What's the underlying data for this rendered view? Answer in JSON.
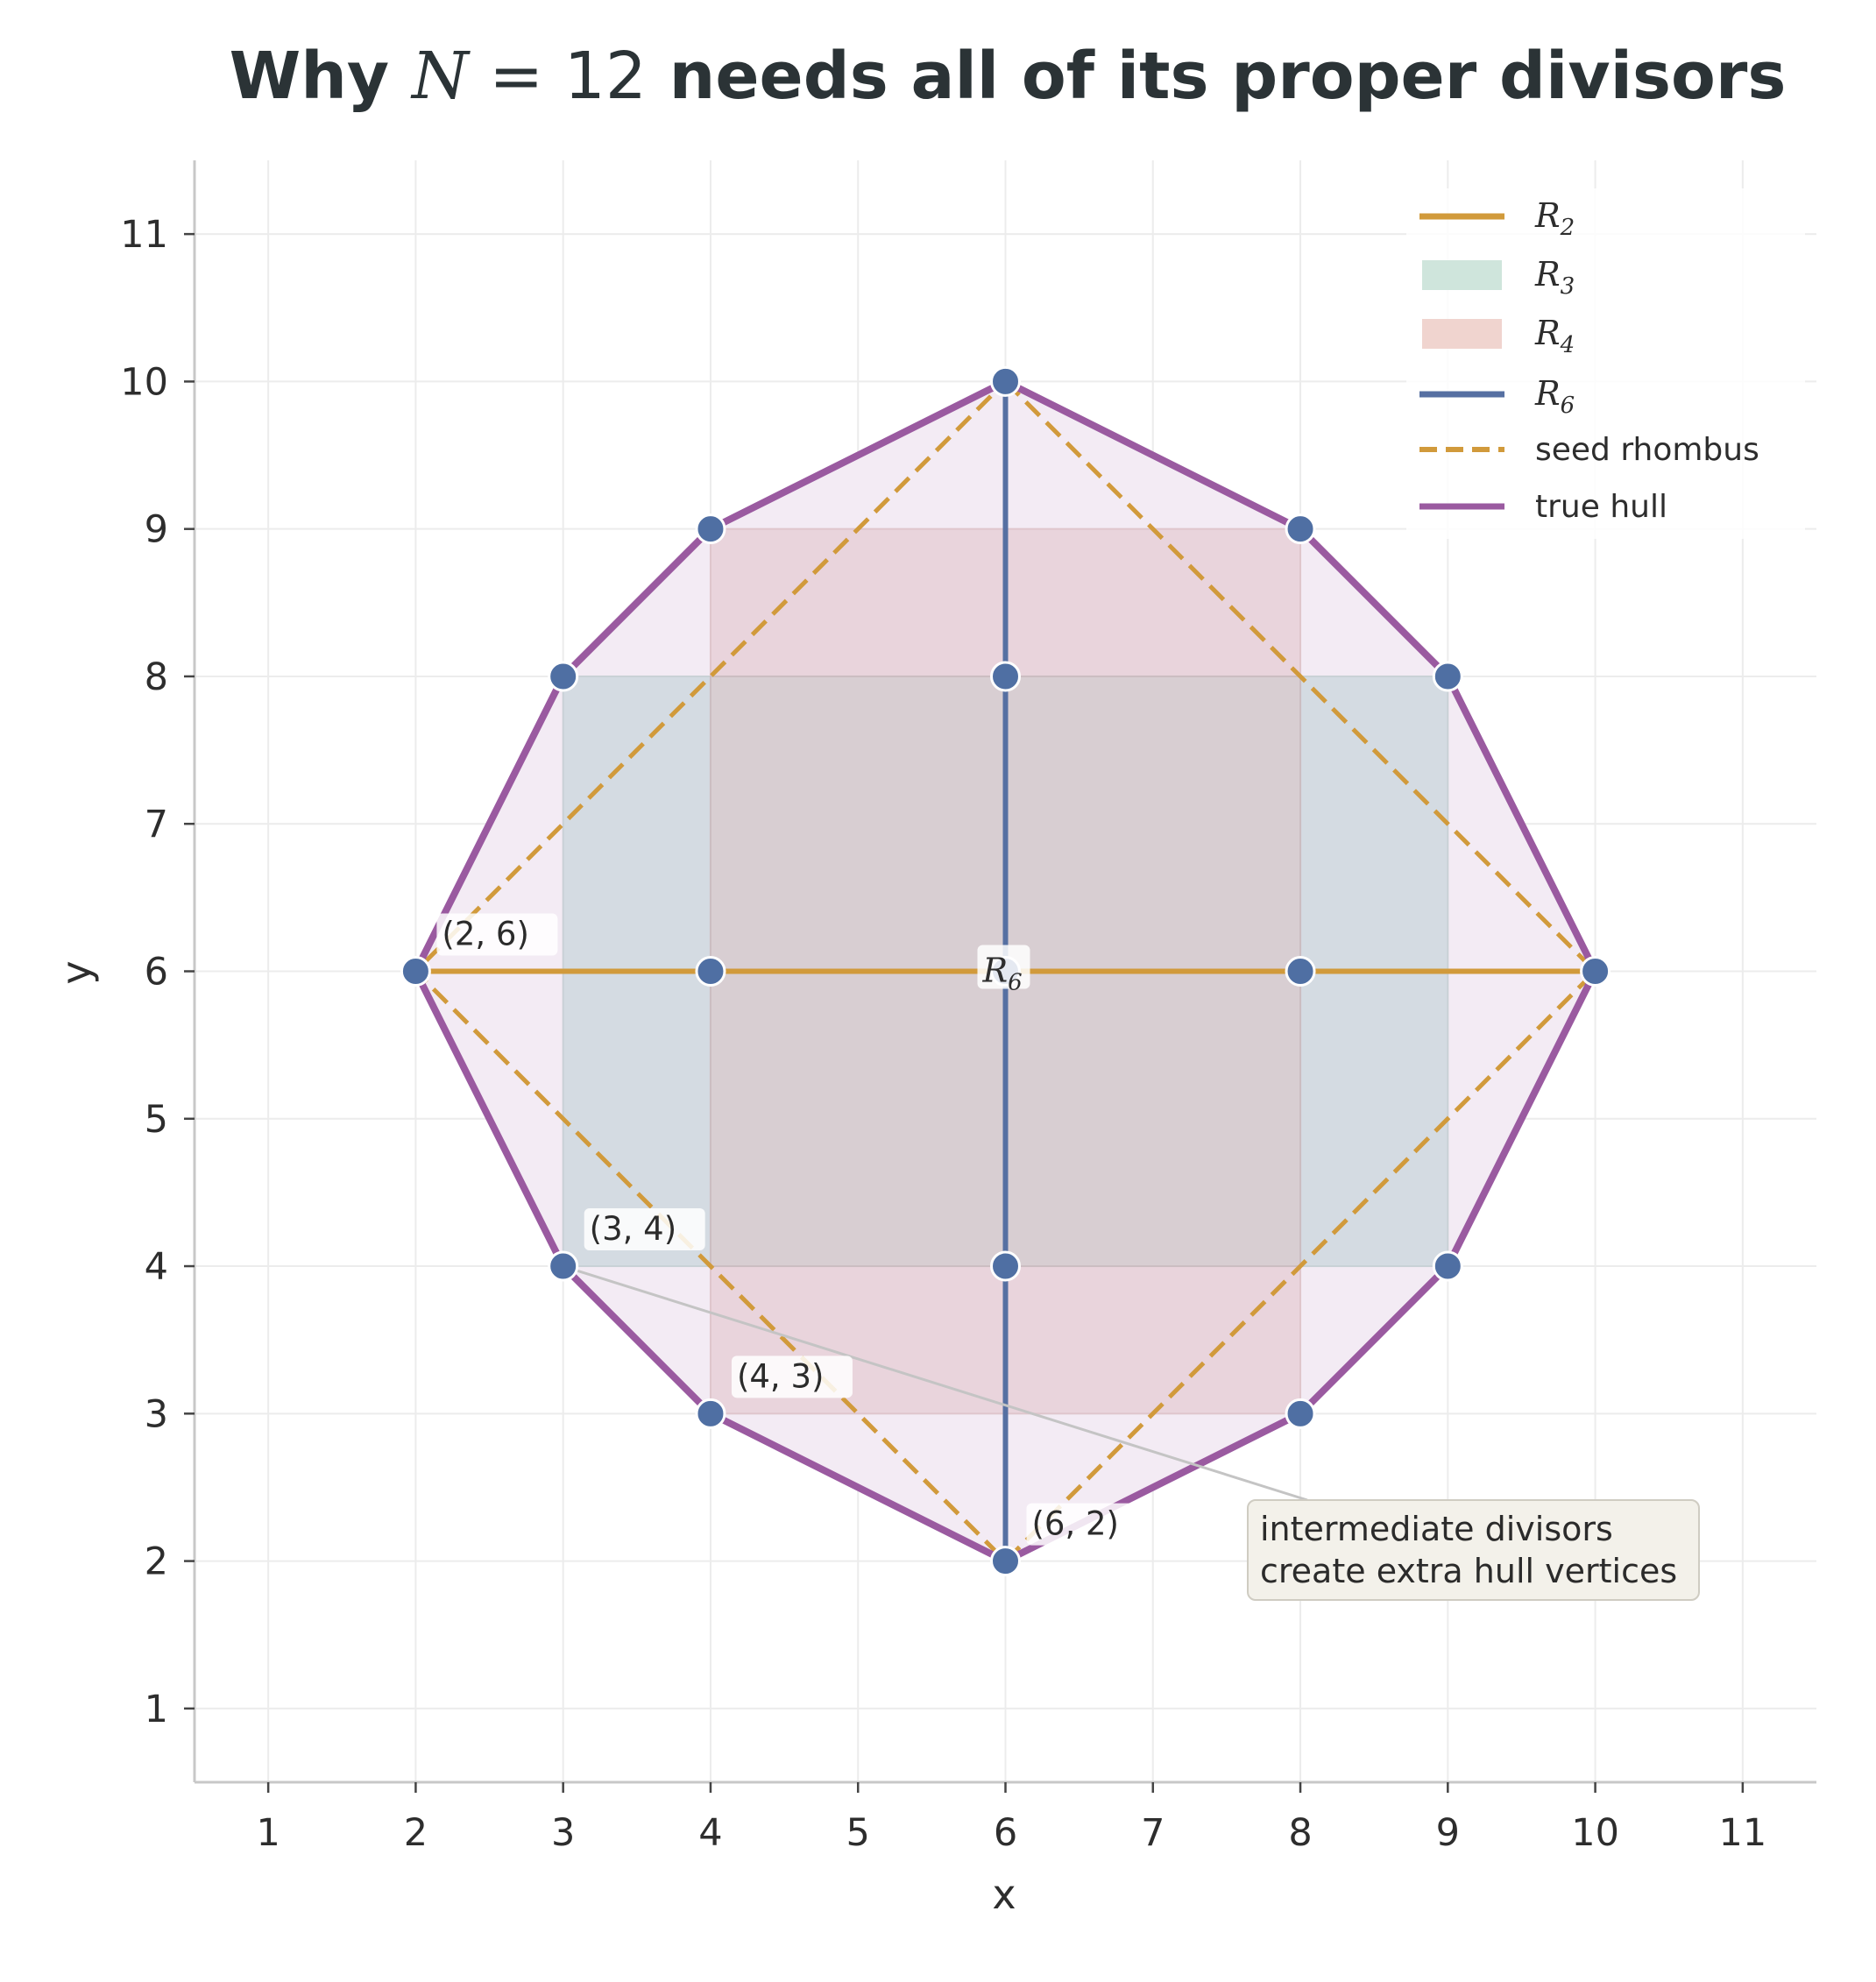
{
  "chart_data": {
    "type": "scatter",
    "title": {
      "prefix": "Why ",
      "math_var": "N",
      "math_rest": " = 12",
      "suffix": " needs all of its proper divisors"
    },
    "xlabel": "x",
    "ylabel": "y",
    "xlim": [
      0.5,
      11.5
    ],
    "ylim": [
      0.5,
      11.5
    ],
    "xticks": [
      1,
      2,
      3,
      4,
      5,
      6,
      7,
      8,
      9,
      10,
      11
    ],
    "yticks": [
      1,
      2,
      3,
      4,
      5,
      6,
      7,
      8,
      9,
      10,
      11
    ],
    "grid": true,
    "legend_position": "top-right",
    "colors": {
      "R2": "#d19a3b",
      "R3_fill": "#cfe5dc",
      "R4_fill": "#f0d4cf",
      "R6": "#5670a2",
      "seed": "#d19a3b",
      "hull": "#9a5aa0",
      "point": "#4f6fa3",
      "hull_fill": "#f3ebf4",
      "region_R3": "#d4dbe2",
      "region_R4": "#e9d4dc",
      "region_R34": "#d8ced2",
      "annotation_bg": "#f3f1ea"
    },
    "legend": [
      {
        "base": "R",
        "sub": "2",
        "style": "line-solid",
        "color_key": "R2"
      },
      {
        "base": "R",
        "sub": "3",
        "style": "patch",
        "color_key": "R3_fill"
      },
      {
        "base": "R",
        "sub": "4",
        "style": "patch",
        "color_key": "R4_fill"
      },
      {
        "base": "R",
        "sub": "6",
        "style": "line-solid",
        "color_key": "R6"
      },
      {
        "text": "seed rhombus",
        "style": "line-dashed",
        "color_key": "seed"
      },
      {
        "text": "true hull",
        "style": "line-solid",
        "color_key": "hull"
      }
    ],
    "true_hull": [
      [
        6,
        10
      ],
      [
        8,
        9
      ],
      [
        9,
        8
      ],
      [
        10,
        6
      ],
      [
        9,
        4
      ],
      [
        8,
        3
      ],
      [
        6,
        2
      ],
      [
        4,
        3
      ],
      [
        3,
        4
      ],
      [
        2,
        6
      ],
      [
        3,
        8
      ],
      [
        4,
        9
      ]
    ],
    "seed_rhombus": [
      [
        6,
        10
      ],
      [
        10,
        6
      ],
      [
        6,
        2
      ],
      [
        2,
        6
      ]
    ],
    "R2_segment": [
      [
        2,
        6
      ],
      [
        10,
        6
      ]
    ],
    "R6_segment": [
      [
        6,
        10
      ],
      [
        6,
        2
      ]
    ],
    "R3_rect": {
      "x": [
        3,
        9
      ],
      "y": [
        4,
        8
      ]
    },
    "R4_rect": {
      "x": [
        4,
        8
      ],
      "y": [
        3,
        9
      ]
    },
    "points": [
      [
        6,
        10
      ],
      [
        4,
        9
      ],
      [
        8,
        9
      ],
      [
        3,
        8
      ],
      [
        6,
        8
      ],
      [
        9,
        8
      ],
      [
        2,
        6
      ],
      [
        4,
        6
      ],
      [
        6,
        6
      ],
      [
        8,
        6
      ],
      [
        10,
        6
      ],
      [
        3,
        4
      ],
      [
        6,
        4
      ],
      [
        9,
        4
      ],
      [
        4,
        3
      ],
      [
        8,
        3
      ],
      [
        6,
        2
      ]
    ],
    "point_labels": [
      {
        "text": "(2, 6)",
        "at": [
          2,
          6
        ]
      },
      {
        "text": "(3, 4)",
        "at": [
          3,
          4
        ]
      },
      {
        "text": "(4, 3)",
        "at": [
          4,
          3
        ]
      },
      {
        "text": "(6, 2)",
        "at": [
          6,
          2
        ]
      }
    ],
    "center_label": {
      "base": "R",
      "sub": "6",
      "at": [
        6,
        6
      ]
    },
    "annotation": {
      "lines": [
        "intermediate divisors",
        "create extra hull vertices"
      ],
      "points_to": [
        3,
        4
      ]
    }
  }
}
